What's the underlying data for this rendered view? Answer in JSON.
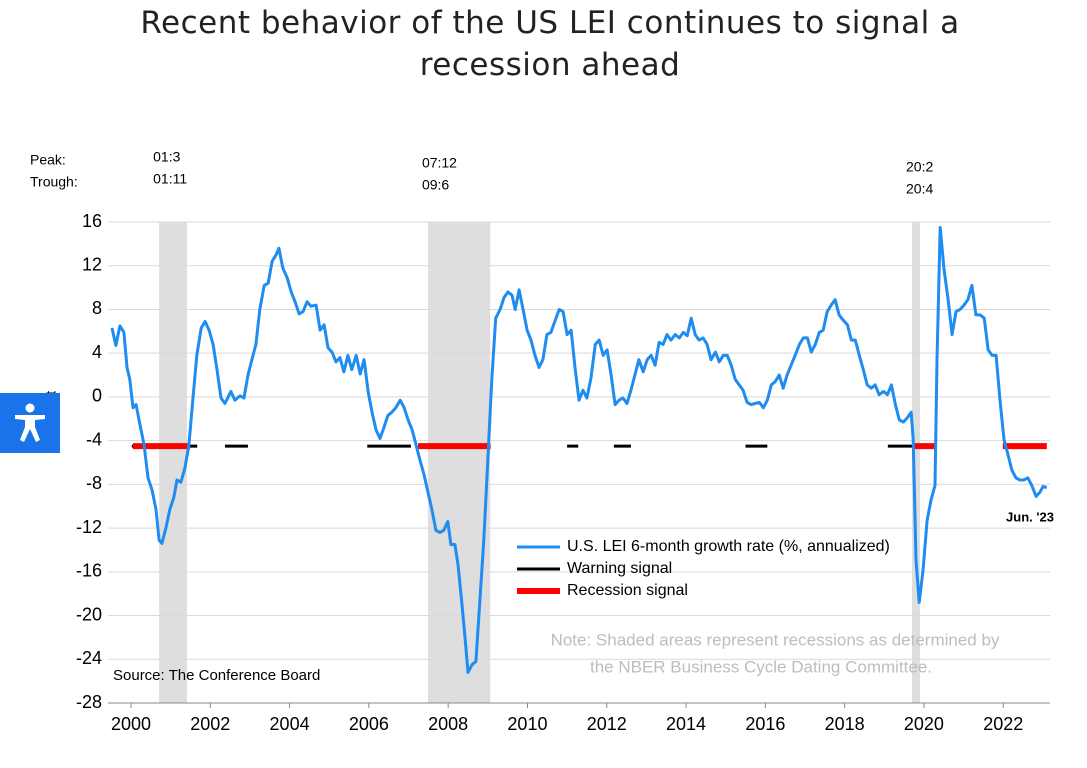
{
  "chart_data": {
    "type": "line",
    "title": "Recent behavior of the US LEI continues to signal a recession ahead",
    "y_label": "Percent",
    "peak_label": "Peak:",
    "trough_label": "Trough:",
    "source": "Source: The Conference Board",
    "note": [
      "Note: Shaded areas represent recessions as determined by",
      "the NBER Business Cycle Dating Committee."
    ],
    "end_annotation": "Jun. '23",
    "xlim": [
      1999.42,
      2023.18
    ],
    "xticks": [
      2000,
      2002,
      2004,
      2006,
      2008,
      2010,
      2012,
      2014,
      2016,
      2018,
      2020,
      2022
    ],
    "ylim": [
      -28,
      16
    ],
    "yticks": [
      -28,
      -24,
      -20,
      -16,
      -12,
      -8,
      -4,
      0,
      4,
      8,
      12,
      16
    ],
    "grid": true,
    "recessions": [
      {
        "peak": "01:3",
        "trough": "01:11",
        "start": 2000.71,
        "end": 2001.41
      },
      {
        "peak": "07:12",
        "trough": "09:6",
        "start": 2007.49,
        "end": 2009.06
      },
      {
        "peak": "20:2",
        "trough": "20:4",
        "start": 2019.7,
        "end": 2019.9
      }
    ],
    "signal_level": -4.5,
    "signals": [
      {
        "name": "Warning signal",
        "color": "#000000",
        "spans": [
          [
            2000.02,
            2001.67
          ],
          [
            2002.37,
            2002.95
          ],
          [
            2005.96,
            2007.06
          ],
          [
            2011.0,
            2011.28
          ],
          [
            2012.18,
            2012.61
          ],
          [
            2015.5,
            2016.05
          ],
          [
            2019.09,
            2019.77
          ]
        ]
      },
      {
        "name": "Recession signal",
        "color": "#ff0000",
        "spans": [
          [
            2000.05,
            2001.49
          ],
          [
            2007.24,
            2009.07
          ],
          [
            2019.77,
            2020.28
          ],
          [
            2021.99,
            2023.1
          ]
        ]
      }
    ],
    "x": [
      1999.52,
      1999.62,
      1999.72,
      1999.82,
      1999.9,
      1999.97,
      2000.05,
      2000.13,
      2000.23,
      2000.33,
      2000.43,
      2000.53,
      2000.63,
      2000.71,
      2000.78,
      2000.88,
      2000.98,
      2001.08,
      2001.16,
      2001.26,
      2001.36,
      2001.46,
      2001.56,
      2001.66,
      2001.77,
      2001.87,
      2001.97,
      2002.07,
      2002.17,
      2002.27,
      2002.37,
      2002.52,
      2002.62,
      2002.75,
      2002.85,
      2002.95,
      2003.05,
      2003.15,
      2003.25,
      2003.36,
      2003.46,
      2003.56,
      2003.66,
      2003.73,
      2003.83,
      2003.94,
      2004.04,
      2004.14,
      2004.24,
      2004.34,
      2004.44,
      2004.54,
      2004.67,
      2004.77,
      2004.87,
      2004.97,
      2005.07,
      2005.17,
      2005.27,
      2005.37,
      2005.47,
      2005.57,
      2005.68,
      2005.78,
      2005.88,
      2005.98,
      2006.08,
      2006.18,
      2006.28,
      2006.38,
      2006.48,
      2006.58,
      2006.68,
      2006.79,
      2006.89,
      2006.99,
      2007.09,
      2007.19,
      2007.29,
      2007.39,
      2007.49,
      2007.59,
      2007.69,
      2007.79,
      2007.89,
      2007.99,
      2008.07,
      2008.17,
      2008.25,
      2008.35,
      2008.43,
      2008.5,
      2008.6,
      2008.7,
      2008.8,
      2008.9,
      2009.0,
      2009.1,
      2009.2,
      2009.31,
      2009.41,
      2009.51,
      2009.61,
      2009.69,
      2009.79,
      2009.89,
      2009.99,
      2010.09,
      2010.19,
      2010.29,
      2010.39,
      2010.49,
      2010.59,
      2010.7,
      2010.8,
      2010.9,
      2011.0,
      2011.1,
      2011.2,
      2011.3,
      2011.4,
      2011.5,
      2011.6,
      2011.71,
      2011.81,
      2011.91,
      2012.01,
      2012.11,
      2012.21,
      2012.31,
      2012.41,
      2012.51,
      2012.61,
      2012.71,
      2012.81,
      2012.92,
      2013.02,
      2013.12,
      2013.22,
      2013.32,
      2013.42,
      2013.52,
      2013.62,
      2013.73,
      2013.83,
      2013.93,
      2014.03,
      2014.13,
      2014.23,
      2014.33,
      2014.43,
      2014.53,
      2014.63,
      2014.74,
      2014.84,
      2014.94,
      2015.04,
      2015.14,
      2015.24,
      2015.34,
      2015.44,
      2015.54,
      2015.64,
      2015.74,
      2015.85,
      2015.95,
      2016.05,
      2016.15,
      2016.25,
      2016.35,
      2016.45,
      2016.55,
      2016.65,
      2016.75,
      2016.86,
      2016.96,
      2017.06,
      2017.16,
      2017.26,
      2017.36,
      2017.46,
      2017.56,
      2017.66,
      2017.76,
      2017.86,
      2017.97,
      2018.07,
      2018.17,
      2018.27,
      2018.37,
      2018.47,
      2018.57,
      2018.67,
      2018.77,
      2018.87,
      2018.98,
      2019.08,
      2019.18,
      2019.28,
      2019.38,
      2019.48,
      2019.58,
      2019.68,
      2019.73,
      2019.8,
      2019.88,
      2019.98,
      2020.08,
      2020.18,
      2020.28,
      2020.33,
      2020.41,
      2020.51,
      2020.61,
      2020.71,
      2020.81,
      2020.91,
      2021.01,
      2021.11,
      2021.21,
      2021.31,
      2021.42,
      2021.52,
      2021.62,
      2021.72,
      2021.82,
      2021.92,
      2022.02,
      2022.12,
      2022.22,
      2022.32,
      2022.42,
      2022.52,
      2022.62,
      2022.72,
      2022.83,
      2022.93,
      2023.0,
      2023.1
    ],
    "series": [
      {
        "name": "U.S. LEI 6-month growth rate (%, annualized)",
        "color": "#1e8cf0",
        "values": [
          6.3,
          4.7,
          6.5,
          5.9,
          2.7,
          1.6,
          -1.0,
          -0.7,
          -2.6,
          -4.4,
          -7.4,
          -8.5,
          -10.3,
          -13.1,
          -13.4,
          -12.0,
          -10.3,
          -9.2,
          -7.6,
          -7.8,
          -6.5,
          -4.4,
          -0.3,
          3.8,
          6.3,
          6.9,
          6.1,
          4.8,
          2.5,
          -0.1,
          -0.6,
          0.5,
          -0.3,
          0.1,
          -0.1,
          2.0,
          3.4,
          4.8,
          8.0,
          10.2,
          10.4,
          12.4,
          13.0,
          13.6,
          11.8,
          10.9,
          9.6,
          8.7,
          7.6,
          7.8,
          8.7,
          8.3,
          8.4,
          6.1,
          6.6,
          4.5,
          4.1,
          3.2,
          3.6,
          2.3,
          3.8,
          2.5,
          3.8,
          2.1,
          3.4,
          0.5,
          -1.4,
          -3.0,
          -3.8,
          -2.8,
          -1.7,
          -1.4,
          -1.0,
          -0.3,
          -1.0,
          -2.1,
          -3.0,
          -4.4,
          -5.8,
          -7.1,
          -8.7,
          -10.3,
          -12.2,
          -12.4,
          -12.2,
          -11.4,
          -13.5,
          -13.5,
          -15.4,
          -19.0,
          -22.2,
          -25.2,
          -24.5,
          -24.2,
          -18.6,
          -13.1,
          -5.8,
          1.6,
          7.2,
          8.0,
          9.1,
          9.6,
          9.3,
          8.0,
          9.8,
          8.0,
          6.1,
          5.2,
          3.8,
          2.7,
          3.4,
          5.7,
          5.9,
          7.0,
          8.0,
          7.8,
          5.7,
          6.1,
          2.7,
          -0.3,
          0.6,
          -0.1,
          1.7,
          4.8,
          5.2,
          3.8,
          4.3,
          2.0,
          -0.7,
          -0.3,
          -0.1,
          -0.6,
          0.6,
          2.0,
          3.4,
          2.3,
          3.4,
          3.8,
          2.9,
          5.0,
          4.8,
          5.7,
          5.2,
          5.7,
          5.4,
          5.9,
          5.6,
          7.2,
          5.7,
          5.2,
          5.4,
          4.8,
          3.4,
          4.1,
          3.2,
          3.8,
          3.8,
          2.9,
          1.6,
          1.1,
          0.6,
          -0.5,
          -0.7,
          -0.6,
          -0.5,
          -1.0,
          -0.3,
          1.1,
          1.4,
          2.0,
          0.8,
          2.0,
          2.9,
          3.8,
          4.8,
          5.4,
          5.4,
          4.1,
          4.8,
          5.9,
          6.1,
          7.8,
          8.4,
          8.9,
          7.5,
          7.0,
          6.6,
          5.2,
          5.2,
          3.8,
          2.5,
          1.1,
          0.8,
          1.1,
          0.2,
          0.5,
          0.2,
          1.1,
          -0.7,
          -2.1,
          -2.3,
          -1.9,
          -1.4,
          -3.9,
          -14.9,
          -18.8,
          -15.8,
          -11.3,
          -9.4,
          -8.1,
          3.4,
          15.5,
          11.6,
          8.9,
          5.7,
          7.8,
          8.0,
          8.4,
          8.9,
          10.2,
          7.5,
          7.5,
          7.2,
          4.3,
          3.8,
          3.8,
          -0.3,
          -3.9,
          -5.3,
          -6.7,
          -7.4,
          -7.6,
          -7.6,
          -7.4,
          -8.1,
          -9.1,
          -8.7,
          -8.2,
          -8.3
        ]
      }
    ]
  }
}
